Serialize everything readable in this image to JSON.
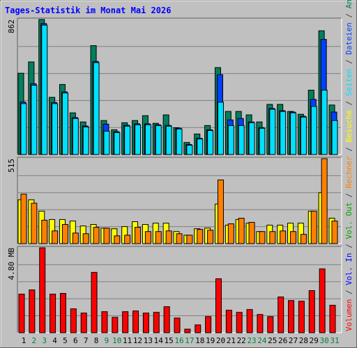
{
  "legend_separator": " / ",
  "chart_data": [
    {
      "type": "bar",
      "title": "Tages-Statistik im Monat Mai 2026",
      "ylim": [
        0,
        862
      ],
      "yticks": [
        862
      ],
      "grid_divisions": 5,
      "series": [
        {
          "name": "Anfragen",
          "color": "#00805c",
          "values": [
            519,
            591,
            862,
            365,
            447,
            266,
            208,
            695,
            217,
            158,
            203,
            217,
            248,
            199,
            253,
            171,
            77,
            131,
            185,
            555,
            275,
            275,
            253,
            208,
            320,
            320,
            275,
            257,
            411,
            790,
            316
          ]
        },
        {
          "name": "Dateien",
          "color": "#0040ff",
          "values": [
            335,
            452,
            836,
            332,
            400,
            236,
            182,
            594,
            194,
            146,
            187,
            196,
            196,
            190,
            186,
            168,
            64,
            104,
            158,
            510,
            221,
            230,
            208,
            172,
            294,
            280,
            271,
            244,
            352,
            735,
            271
          ]
        },
        {
          "name": "Seiten",
          "color": "#00e0ff",
          "values": [
            325,
            442,
            826,
            325,
            393,
            230,
            176,
            587,
            149,
            140,
            181,
            190,
            190,
            185,
            181,
            163,
            59,
            99,
            153,
            334,
            185,
            185,
            203,
            167,
            289,
            275,
            266,
            239,
            307,
            411,
            217
          ]
        }
      ]
    },
    {
      "type": "bar",
      "ylim": [
        0,
        515
      ],
      "yticks": [
        515
      ],
      "grid_divisions": 5,
      "series": [
        {
          "name": "Besuche",
          "color": "#ffff00",
          "values": [
            266,
            266,
            197,
            146,
            146,
            137,
            107,
            116,
            94,
            90,
            103,
            133,
            116,
            124,
            124,
            73,
            51,
            90,
            94,
            240,
            112,
            146,
            124,
            73,
            112,
            112,
            124,
            124,
            197,
            309,
            154
          ]
        },
        {
          "name": "Rechner",
          "color": "#ff8000",
          "values": [
            300,
            245,
            142,
            77,
            116,
            64,
            60,
            99,
            94,
            47,
            51,
            99,
            73,
            73,
            77,
            60,
            51,
            86,
            81,
            386,
            120,
            154,
            129,
            73,
            73,
            77,
            73,
            56,
            197,
            515,
            137
          ]
        }
      ]
    },
    {
      "type": "bar",
      "ylim": [
        0,
        4.8
      ],
      "yticks": [
        {
          "value": 4.8,
          "label": "4.80 MB"
        }
      ],
      "grid_divisions": 5,
      "categories": [
        "1",
        "2",
        "3",
        "4",
        "5",
        "6",
        "7",
        "8",
        "9",
        "10",
        "11",
        "12",
        "13",
        "14",
        "15",
        "16",
        "17",
        "18",
        "19",
        "20",
        "21",
        "22",
        "23",
        "24",
        "25",
        "26",
        "27",
        "28",
        "29",
        "30",
        "31"
      ],
      "category_colors": [
        "#000000",
        "#008040",
        "#008040",
        "#000000",
        "#000000",
        "#000000",
        "#000000",
        "#000000",
        "#008040",
        "#008040",
        "#000000",
        "#000000",
        "#000000",
        "#000000",
        "#000000",
        "#008040",
        "#008040",
        "#000000",
        "#000000",
        "#000000",
        "#000000",
        "#000000",
        "#008040",
        "#008040",
        "#000000",
        "#000000",
        "#000000",
        "#000000",
        "#000000",
        "#008040",
        "#008040"
      ],
      "series": [
        {
          "name": "Volumen",
          "color": "#ff0000",
          "values": [
            2.18,
            2.42,
            4.8,
            2.18,
            2.22,
            1.35,
            1.11,
            3.41,
            1.19,
            0.87,
            1.19,
            1.23,
            1.11,
            1.15,
            1.47,
            0.83,
            0.2,
            0.44,
            0.91,
            3.05,
            1.27,
            1.15,
            1.31,
            1.03,
            0.91,
            2.02,
            1.82,
            1.78,
            2.38,
            3.61,
            1.55
          ]
        }
      ],
      "extra_legend": [
        {
          "name": "Vol. In",
          "color": "#0000ff"
        },
        {
          "name": "Vol. Out",
          "color": "#00a000"
        }
      ]
    }
  ]
}
